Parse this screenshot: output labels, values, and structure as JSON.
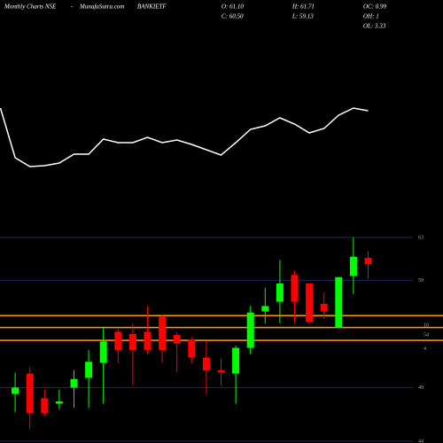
{
  "header": {
    "source": "Monthly Charts NSE",
    "sep": "-",
    "site": "MunafaSutra.com",
    "symbol": "BANKIETF",
    "o": "O: 61.10",
    "h": "H: 61.71",
    "oc": "OC: 0.99",
    "c": "C: 60.50",
    "l": "L: 59.13",
    "oh": "OH: 1",
    "ol": "OL: 3.33"
  },
  "chart_data": {
    "type": "candlestick",
    "categories": [
      null,
      null,
      null,
      null,
      null,
      null,
      null,
      null,
      null,
      null,
      null,
      null,
      null,
      null,
      null,
      null,
      null,
      null,
      null,
      null,
      null,
      null,
      null,
      null,
      null,
      null
    ],
    "open": [
      null,
      48.4,
      50.3,
      48.0,
      47.5,
      49.0,
      49.9,
      51.3,
      54.2,
      54.0,
      54.2,
      55.6,
      53.9,
      53.5,
      51.8,
      50.6,
      50.3,
      52.7,
      56.1,
      57.0,
      59.5,
      58.7,
      56.8,
      54.6,
      59.4,
      61.1
    ],
    "high": [
      null,
      50.4,
      50.9,
      48.8,
      48.8,
      50.6,
      52.5,
      54.6,
      54.6,
      55.0,
      56.6,
      55.8,
      54.2,
      53.7,
      53.3,
      51.7,
      52.9,
      56.6,
      58.3,
      60.9,
      59.9,
      58.7,
      57.9,
      59.3,
      63.0,
      61.71
    ],
    "low": [
      null,
      46.7,
      45.1,
      46.3,
      47.0,
      47.1,
      47.1,
      47.5,
      51.3,
      49.2,
      52.1,
      51.3,
      50.4,
      51.3,
      48.4,
      49.2,
      47.5,
      52.1,
      55.0,
      55.0,
      55.0,
      54.9,
      55.4,
      54.6,
      57.7,
      59.13
    ],
    "close": [
      null,
      49.0,
      46.6,
      46.6,
      47.7,
      49.8,
      51.4,
      53.3,
      52.5,
      52.5,
      52.5,
      52.5,
      53.1,
      51.8,
      50.6,
      50.4,
      52.7,
      56.0,
      56.6,
      58.7,
      57.0,
      55.1,
      56.1,
      59.3,
      61.2,
      60.5
    ],
    "up_color": "#00ff00",
    "down_color": "#ff0000",
    "ylim": [
      44,
      63.7
    ],
    "yticks": [
      44,
      49,
      59,
      63
    ],
    "grid": true,
    "grid_color": "#1c2a66",
    "levels": [
      55.7,
      54.6,
      53.4
    ],
    "level_color": "#ff9900",
    "annotations": [
      {
        "value": 54.8,
        "label": "10"
      },
      {
        "value": 53.9,
        "label": "54"
      },
      {
        "value": 52.6,
        "label": "4"
      }
    ],
    "indicator": {
      "name": null,
      "color": "#ffffff",
      "ylim": [
        0,
        100
      ],
      "values": [
        78,
        22,
        12,
        13,
        16,
        26,
        26,
        43,
        39,
        39,
        45,
        39,
        42,
        37,
        31,
        25,
        39,
        54,
        58,
        67,
        60,
        50,
        55,
        70,
        78,
        75
      ]
    }
  }
}
